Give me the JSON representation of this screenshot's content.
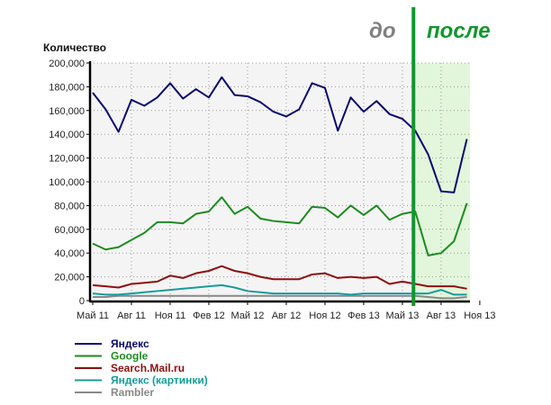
{
  "chart_data": {
    "type": "line",
    "title": "",
    "ylabel": "Количество",
    "xlabel": "",
    "ylim": [
      0,
      200000
    ],
    "yticks": [
      "0",
      "20,000",
      "40,000",
      "60,000",
      "80,000",
      "100,000",
      "120,000",
      "140,000",
      "160,000",
      "180,000",
      "200,000"
    ],
    "grid": true,
    "x_start": "Май 11",
    "x_end": "Окт 13",
    "xtick_labels": [
      "Май 11",
      "Авг 11",
      "Ноя 11",
      "Фев 12",
      "Май 12",
      "Авг 12",
      "Ноя 12",
      "Фев 13",
      "Май 13",
      "Авг 13",
      "Ноя 13"
    ],
    "legend_position": "bottom-left",
    "series": [
      {
        "name": "Яндекс",
        "color": "#0a0a6a",
        "values": [
          175000,
          161000,
          142000,
          169000,
          164000,
          171000,
          183000,
          170000,
          178000,
          171000,
          188000,
          173000,
          172000,
          167000,
          159000,
          155000,
          161000,
          183000,
          179000,
          143000,
          171000,
          159000,
          168000,
          157000,
          153000,
          143000,
          123000,
          92000,
          91000,
          136000
        ]
      },
      {
        "name": "Google",
        "color": "#1e8a1e",
        "values": [
          48000,
          43000,
          45000,
          51000,
          57000,
          66000,
          66000,
          65000,
          73000,
          75000,
          87000,
          73000,
          79000,
          69000,
          67000,
          66000,
          65000,
          79000,
          78000,
          70000,
          80000,
          72000,
          80000,
          68000,
          73000,
          75000,
          38000,
          40000,
          50000,
          82000
        ]
      },
      {
        "name": "Search.Mail.ru",
        "color": "#8b1010",
        "values": [
          13000,
          12000,
          11000,
          14000,
          15000,
          16000,
          21000,
          19000,
          23000,
          25000,
          29000,
          25000,
          23000,
          20000,
          18000,
          18000,
          18000,
          22000,
          23000,
          19000,
          20000,
          19000,
          20000,
          14000,
          16000,
          14000,
          12000,
          12000,
          12000,
          10000
        ]
      },
      {
        "name": "Яндекс (картинки)",
        "color": "#1a9a9a",
        "values": [
          6000,
          5000,
          5000,
          6000,
          7000,
          8000,
          9000,
          10000,
          11000,
          12000,
          13000,
          11000,
          8000,
          7000,
          6000,
          6000,
          6000,
          6000,
          6000,
          6000,
          5000,
          6000,
          6000,
          6000,
          6000,
          6000,
          6000,
          9000,
          5000,
          5000
        ]
      },
      {
        "name": "Rambler",
        "color": "#888888",
        "values": [
          3000,
          3000,
          4000,
          4000,
          4000,
          4000,
          4000,
          4000,
          4000,
          4000,
          4000,
          4000,
          4000,
          4000,
          4000,
          4000,
          4000,
          4000,
          4000,
          4000,
          4000,
          4000,
          4000,
          4000,
          4000,
          4000,
          3000,
          2000,
          2000,
          3000
        ]
      }
    ],
    "annotations": {
      "before_label": "до",
      "after_label": "после",
      "divider_month": "Июн 13",
      "before_color": "#808080",
      "after_color": "#10962e",
      "after_shade": "#e2f6dc"
    }
  }
}
